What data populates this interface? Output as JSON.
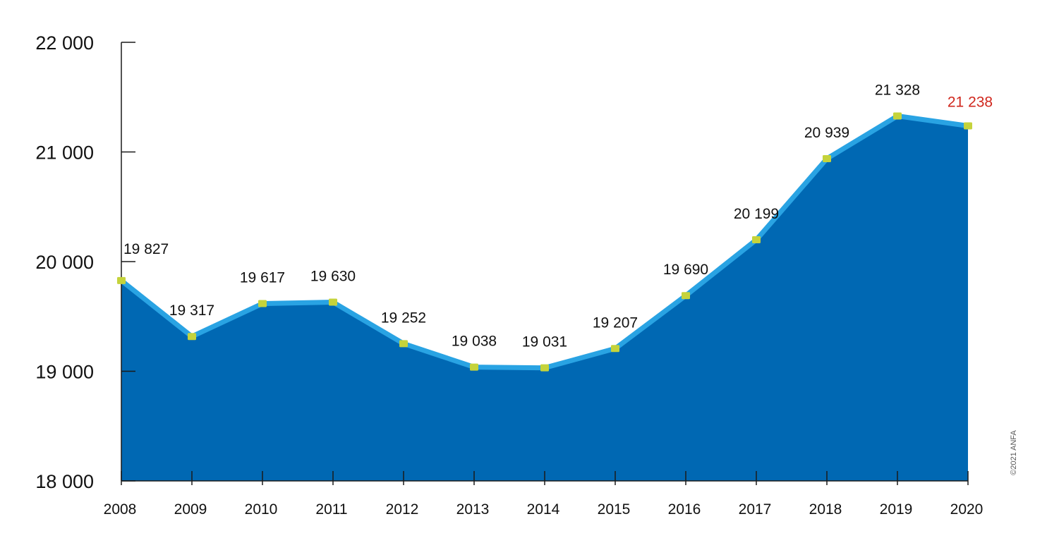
{
  "chart_data": {
    "type": "area",
    "title": "",
    "xlabel": "",
    "ylabel": "",
    "x": [
      "2008",
      "2009",
      "2010",
      "2011",
      "2012",
      "2013",
      "2014",
      "2015",
      "2016",
      "2017",
      "2018",
      "2019",
      "2020"
    ],
    "series": [
      {
        "values": [
          19827,
          19317,
          19617,
          19630,
          19252,
          19038,
          19031,
          19207,
          19690,
          20199,
          20939,
          21328,
          21238
        ]
      }
    ],
    "data_labels": [
      "19 827",
      "19 317",
      "19 617",
      "19 630",
      "19 252",
      "19 038",
      "19 031",
      "19 207",
      "19 690",
      "20 199",
      "20 939",
      "21 328",
      "21 238"
    ],
    "ylim": [
      18000,
      22000
    ],
    "y_ticks": [
      18000,
      19000,
      20000,
      21000,
      22000
    ],
    "y_tick_labels": [
      "18 000",
      "19 000",
      "20 000",
      "21 000",
      "22 000"
    ],
    "grid": false,
    "legend": "none",
    "highlight_index": 12,
    "credit": "©2021 ANFA",
    "colors": {
      "area_fill": "#0068b3",
      "line": "#29a3e3",
      "marker": "#c5d33b",
      "axis": "#1a1a1a",
      "label": "#111111",
      "highlight_label": "#d0271d"
    }
  }
}
